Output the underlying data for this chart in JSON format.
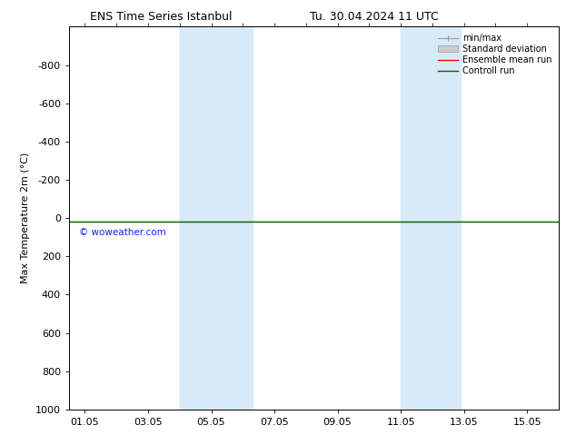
{
  "title_left": "ENS Time Series Istanbul",
  "title_right": "Tu. 30.04.2024 11 UTC",
  "ylabel": "Max Temperature 2m (°C)",
  "ylim_top": -1000,
  "ylim_bottom": 1000,
  "yticks": [
    -800,
    -600,
    -400,
    -200,
    0,
    200,
    400,
    600,
    800,
    1000
  ],
  "xtick_labels": [
    "01.05",
    "03.05",
    "05.05",
    "07.05",
    "09.05",
    "11.05",
    "13.05",
    "15.05"
  ],
  "xtick_positions": [
    1,
    3,
    5,
    7,
    9,
    11,
    13,
    15
  ],
  "xlim": [
    0.5,
    16
  ],
  "shaded_regions": [
    {
      "xstart": 4.0,
      "xend": 5.5,
      "color": "#d8eaf8"
    },
    {
      "xstart": 5.5,
      "xend": 6.2,
      "color": "#d8eaf8"
    },
    {
      "xstart": 11.0,
      "xend": 12.0,
      "color": "#d8eaf8"
    },
    {
      "xstart": 12.0,
      "xend": 12.8,
      "color": "#d8eaf8"
    }
  ],
  "line_y": 20,
  "control_run_color": "#006400",
  "ensemble_mean_color": "#ff0000",
  "minmax_color": "#999999",
  "std_dev_color": "#cccccc",
  "watermark": "© woweather.com",
  "watermark_color": "#1a1aff",
  "background_color": "#ffffff",
  "legend_labels": [
    "min/max",
    "Standard deviation",
    "Ensemble mean run",
    "Controll run"
  ],
  "legend_colors": [
    "#999999",
    "#cccccc",
    "#ff0000",
    "#006400"
  ],
  "font_family": "DejaVu Sans",
  "title_fontsize": 9,
  "tick_fontsize": 8,
  "ylabel_fontsize": 8
}
